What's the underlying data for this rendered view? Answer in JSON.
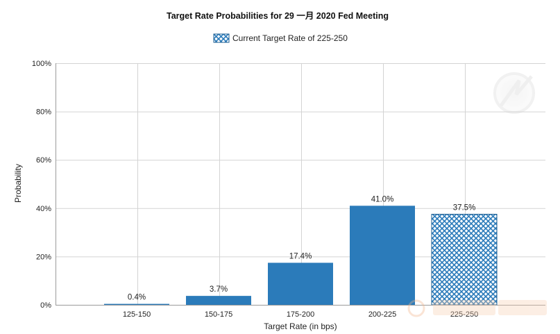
{
  "chart_data": {
    "type": "bar",
    "title": "Target Rate Probabilities for 29 一月 2020  Fed Meeting",
    "legend": {
      "label": "Current Target Rate of 225-250",
      "placement": "top-center",
      "pattern": "crosshatch"
    },
    "xlabel": "Target Rate (in bps)",
    "ylabel": "Probability",
    "categories": [
      "125-150",
      "150-175",
      "175-200",
      "200-225",
      "225-250"
    ],
    "values": [
      0.4,
      3.7,
      17.4,
      41.0,
      37.5
    ],
    "data_labels": [
      "0.4%",
      "3.7%",
      "17.4%",
      "41.0%",
      "37.5%"
    ],
    "current_target_index": 4,
    "ylim": [
      0,
      100
    ],
    "yticks": [
      0,
      20,
      40,
      60,
      80,
      100
    ],
    "ytick_labels": [
      "0%",
      "20%",
      "40%",
      "60%",
      "80%",
      "100%"
    ],
    "grid": true,
    "colors": {
      "bar": "#2b7bba",
      "bar_edge": "#1f5f92",
      "hatch_bg": "#ffffff",
      "grid": "#d3d3d3",
      "axis": "#9a9a9a",
      "text": "#222222"
    }
  }
}
